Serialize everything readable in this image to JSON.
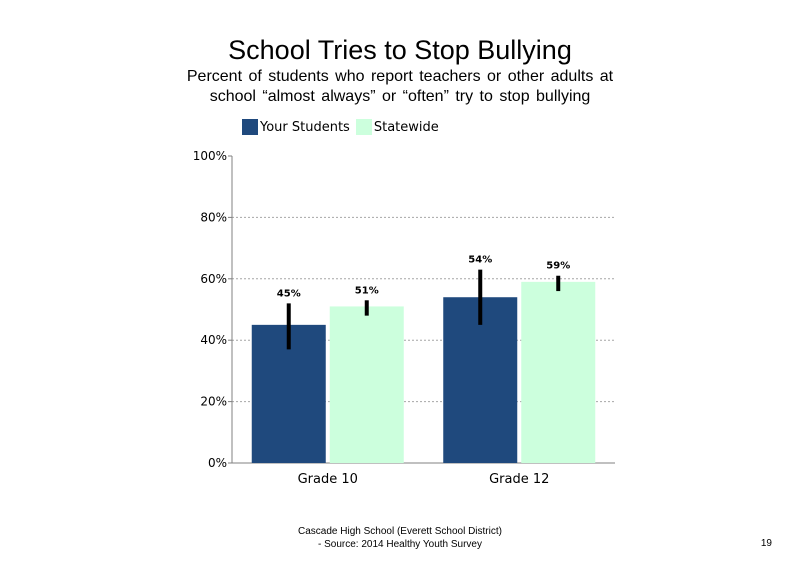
{
  "page_number": "19",
  "footer": {
    "line1": "Cascade High School (Everett School District)",
    "line2": "- Source: 2014 Healthy Youth Survey"
  },
  "chart_data": {
    "type": "bar",
    "title": "School Tries to Stop Bullying",
    "subtitle": "Percent of students who report teachers or other adults at school “almost always” or “often” try to stop bullying",
    "xlabel": "",
    "ylabel": "",
    "categories": [
      "Grade 10",
      "Grade 12"
    ],
    "ylim": [
      0,
      100
    ],
    "yticks": [
      0,
      20,
      40,
      60,
      80,
      100
    ],
    "ytick_labels": [
      "0%",
      "20%",
      "40%",
      "60%",
      "80%",
      "100%"
    ],
    "grid": true,
    "legend_position": "top-left",
    "series": [
      {
        "name": "Your Students",
        "color": "#1f497d",
        "values": [
          45,
          54
        ],
        "labels": [
          "45%",
          "54%"
        ],
        "error_low": [
          37,
          45
        ],
        "error_high": [
          52,
          63
        ]
      },
      {
        "name": "Statewide",
        "color": "#ccffdd",
        "values": [
          51,
          59
        ],
        "labels": [
          "51%",
          "59%"
        ],
        "error_low": [
          48,
          56
        ],
        "error_high": [
          53,
          61
        ]
      }
    ]
  }
}
